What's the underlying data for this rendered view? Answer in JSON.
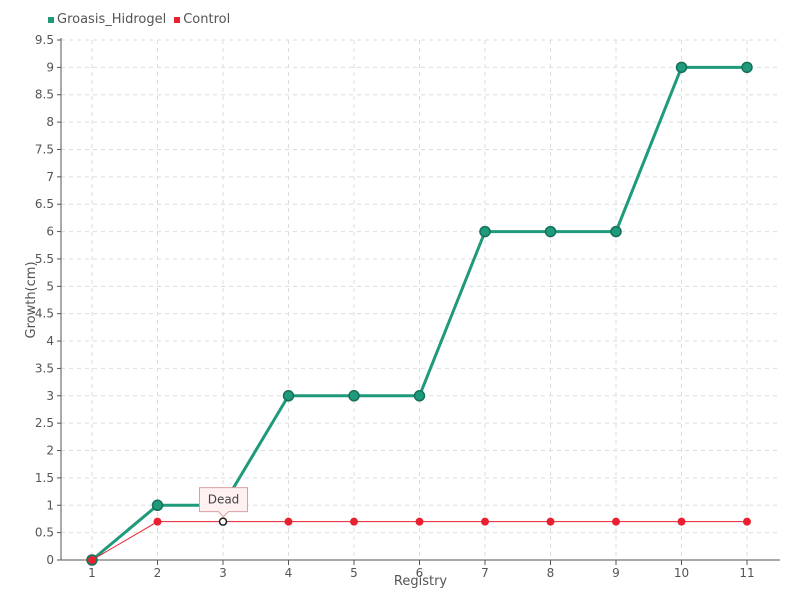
{
  "chart_data": {
    "type": "line",
    "x": [
      1,
      2,
      3,
      4,
      5,
      6,
      7,
      8,
      9,
      10,
      11
    ],
    "xlabel": "Registry",
    "ylabel": "Growth(cm)",
    "ylim": [
      0,
      9.5
    ],
    "ytick_step": 0.5,
    "grid": true,
    "legend_position": "top-left",
    "series": [
      {
        "name": "Groasis_Hidrogel",
        "color": "#1f9a7a",
        "values": [
          0,
          1,
          1,
          3,
          3,
          3,
          6,
          6,
          6,
          9,
          9
        ]
      },
      {
        "name": "Control",
        "color": "#e8202f",
        "values": [
          0,
          0.7,
          0.7,
          0.7,
          0.7,
          0.7,
          0.7,
          0.7,
          0.7,
          0.7,
          0.7
        ]
      }
    ],
    "annotations": [
      {
        "series": "Control",
        "x": 3,
        "text": "Dead"
      }
    ]
  }
}
